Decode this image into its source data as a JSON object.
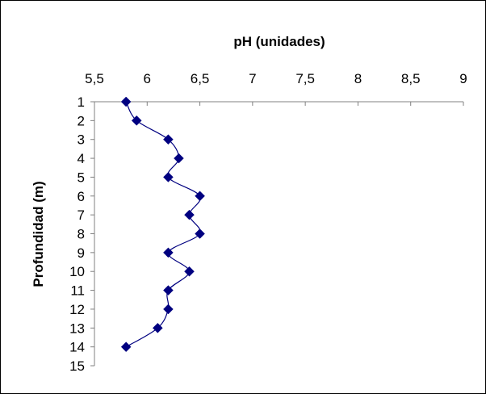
{
  "chart_data": {
    "type": "line",
    "title": "pH (unidades)",
    "xlabel": "pH (unidades)",
    "ylabel": "Profundidad (m)",
    "x_axis_position": "top",
    "y_axis_inverted": true,
    "xlim": [
      5.5,
      9
    ],
    "ylim": [
      1,
      15
    ],
    "x_ticks": [
      "5,5",
      "6",
      "6,5",
      "7",
      "7,5",
      "8",
      "8,5",
      "9"
    ],
    "y_ticks": [
      "1",
      "2",
      "3",
      "4",
      "5",
      "6",
      "7",
      "8",
      "9",
      "10",
      "11",
      "12",
      "13",
      "14",
      "15"
    ],
    "grid": false,
    "legend": "none",
    "smooth": true,
    "marker": "diamond",
    "series": [
      {
        "color": "#000080",
        "points": [
          {
            "depth": 1,
            "ph": 5.8
          },
          {
            "depth": 2,
            "ph": 5.9
          },
          {
            "depth": 3,
            "ph": 6.2
          },
          {
            "depth": 4,
            "ph": 6.3
          },
          {
            "depth": 5,
            "ph": 6.2
          },
          {
            "depth": 6,
            "ph": 6.5
          },
          {
            "depth": 7,
            "ph": 6.4
          },
          {
            "depth": 8,
            "ph": 6.5
          },
          {
            "depth": 9,
            "ph": 6.2
          },
          {
            "depth": 10,
            "ph": 6.4
          },
          {
            "depth": 11,
            "ph": 6.2
          },
          {
            "depth": 12,
            "ph": 6.2
          },
          {
            "depth": 13,
            "ph": 6.1
          },
          {
            "depth": 14,
            "ph": 5.8
          }
        ]
      }
    ]
  }
}
